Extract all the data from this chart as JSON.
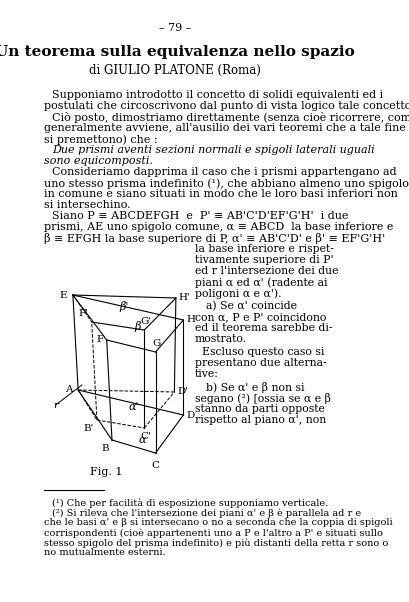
{
  "page_number": "– 79 –",
  "title": "Un teorema sulla equivalenza nello spazio",
  "author": "di GIULIO PLATONE (Roma)",
  "body_text": [
    "Supponiamo introdotto il concetto di solidi equivalenti ed i",
    "postulati che circoscrivono dal punto di vista logico tale concetto.",
    "Ciò posto, dimostriamo direttamente (senza cioè ricorrere, come",
    "generalmente avviene, all'ausilio dei vari teoremi che a tale fine",
    "si premettono) che:",
    "Due prismi aventi sezioni normali e spigoli laterali uguali",
    "sono equicomposti.",
    "Consideriamo dapprima il caso che i prismi appartengano ad",
    "uno stesso prisma indefinito (¹), che abbiano almeno uno spigolo",
    "in comune e siano situati in modo che le loro basi inferiori non",
    "si intersechino.",
    "Siano P ≡ ABCDEFGH e P' ≡ AB'C'D'EF'G'H'  i due",
    "prismi, AE uno spigolo comune, α ≡ ABCD  la base inferiore e",
    "β ≡ EFGH la base superiore di P, α' ≡ AB'C'D' e β' ≡ EF'G'H'",
    "la base inferiore e rispet-",
    "tivamente superiore di P'",
    "ed r l'intersezione dei due",
    "piani α ed α' (radente ai",
    "poligoni α e α').",
    "a) Se α' coincide",
    "con α, P e P' coincidono",
    "ed il teorema sarebbe di-",
    "mostrato.",
    "Escluso questo caso si",
    "presentano due alterna-",
    "tive:",
    "b) Se α' e β non si",
    "segano (²) [ossia se α e β",
    "stanno da parti opposte",
    "rispetto al piano α', non"
  ],
  "footnote_line": true,
  "footnote1": "(¹) Che per facilità di esposizione supponiamo verticale.",
  "footnote2": "(²) Si rileva che l'intersezione dei piani α' e β è parallela ad r e",
  "footnote3": "che le basi α' e β si intersecano o no a seconda che la coppia di spigoli",
  "footnote4": "corrispondenti (cioè appartenenti uno a P e l'altro a P' e situati sullo",
  "footnote5": "stesso spigolo del prisma indefinito) e più distanti della retta r sono o",
  "footnote6": "no mutualmente esterni.",
  "fig_label": "Fig. 1",
  "background": "#ffffff",
  "text_color": "#000000"
}
